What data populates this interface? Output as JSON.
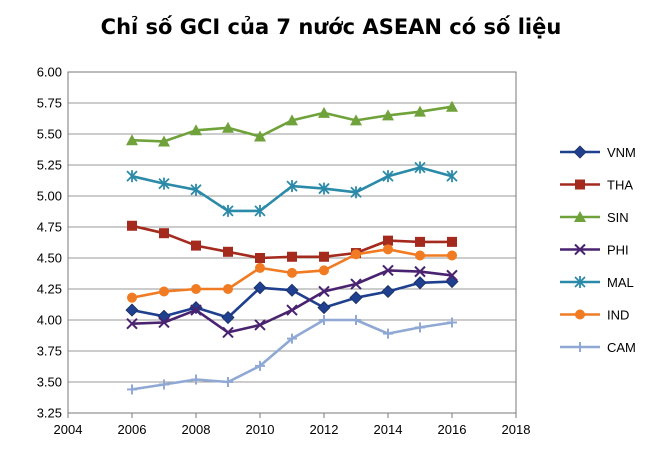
{
  "chart_data": {
    "type": "line",
    "title": "Chỉ số GCI của 7 nước ASEAN có số liệu",
    "xlabel": "",
    "ylabel": "",
    "xlim": [
      2004,
      2018
    ],
    "ylim": [
      3.25,
      6.0
    ],
    "xticks": [
      2004,
      2006,
      2008,
      2010,
      2012,
      2014,
      2016,
      2018
    ],
    "xtick_labels": [
      "2004",
      "2006",
      "2008",
      "2010",
      "2012",
      "2014",
      "2016",
      "2018"
    ],
    "yticks": [
      3.25,
      3.5,
      3.75,
      4.0,
      4.25,
      4.5,
      4.75,
      5.0,
      5.25,
      5.5,
      5.75,
      6.0
    ],
    "ytick_labels": [
      "3.25",
      "3.50",
      "3.75",
      "4.00",
      "4.25",
      "4.50",
      "4.75",
      "5.00",
      "5.25",
      "5.50",
      "5.75",
      "6.00"
    ],
    "grid": "horizontal",
    "legend_position": "right",
    "x": [
      2006,
      2007,
      2008,
      2009,
      2010,
      2011,
      2012,
      2013,
      2014,
      2015,
      2016
    ],
    "series": [
      {
        "name": "VNM",
        "color": "#1f3f8f",
        "marker": "diamond",
        "values": [
          4.08,
          4.03,
          4.1,
          4.02,
          4.26,
          4.24,
          4.1,
          4.18,
          4.23,
          4.3,
          4.31
        ]
      },
      {
        "name": "THA",
        "color": "#a52a1e",
        "marker": "square",
        "values": [
          4.76,
          4.7,
          4.6,
          4.55,
          4.5,
          4.51,
          4.51,
          4.54,
          4.64,
          4.63,
          4.63
        ]
      },
      {
        "name": "SIN",
        "color": "#6fa23a",
        "marker": "triangle",
        "values": [
          5.45,
          5.44,
          5.53,
          5.55,
          5.48,
          5.61,
          5.67,
          5.61,
          5.65,
          5.68,
          5.72
        ]
      },
      {
        "name": "PHI",
        "color": "#4a2370",
        "marker": "x",
        "values": [
          3.97,
          3.98,
          4.08,
          3.9,
          3.96,
          4.08,
          4.23,
          4.29,
          4.4,
          4.39,
          4.36
        ]
      },
      {
        "name": "MAL",
        "color": "#2b8aa8",
        "marker": "star",
        "values": [
          5.16,
          5.1,
          5.05,
          4.88,
          4.88,
          5.08,
          5.06,
          5.03,
          5.16,
          5.23,
          5.16
        ]
      },
      {
        "name": "IND",
        "color": "#f07b22",
        "marker": "circle",
        "values": [
          4.18,
          4.23,
          4.25,
          4.25,
          4.42,
          4.38,
          4.4,
          4.53,
          4.57,
          4.52,
          4.52
        ]
      },
      {
        "name": "CAM",
        "color": "#8fa8d4",
        "marker": "plus",
        "values": [
          3.44,
          3.48,
          3.52,
          3.5,
          3.63,
          3.85,
          4.0,
          4.0,
          3.89,
          3.94,
          3.98
        ]
      }
    ]
  }
}
